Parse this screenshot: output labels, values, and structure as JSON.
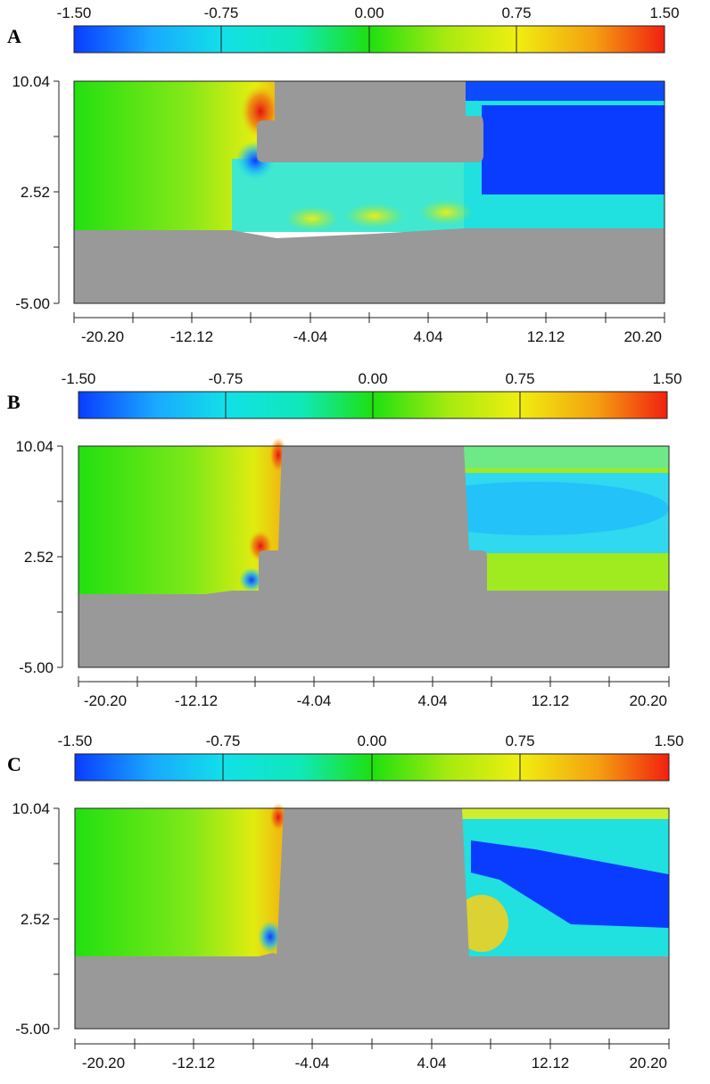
{
  "panels": [
    {
      "letter": "A"
    },
    {
      "letter": "B"
    },
    {
      "letter": "C"
    }
  ],
  "colorbar": {
    "ticks": [
      "-1.50",
      "-0.75",
      "0.00",
      "0.75",
      "1.50"
    ]
  },
  "y_axis": {
    "ticks": [
      "10.04",
      "2.52",
      "-5.00"
    ]
  },
  "x_axis": {
    "ticks": [
      "-20.20",
      "-12.12",
      "-4.04",
      "4.04",
      "12.12",
      "20.20"
    ]
  }
}
